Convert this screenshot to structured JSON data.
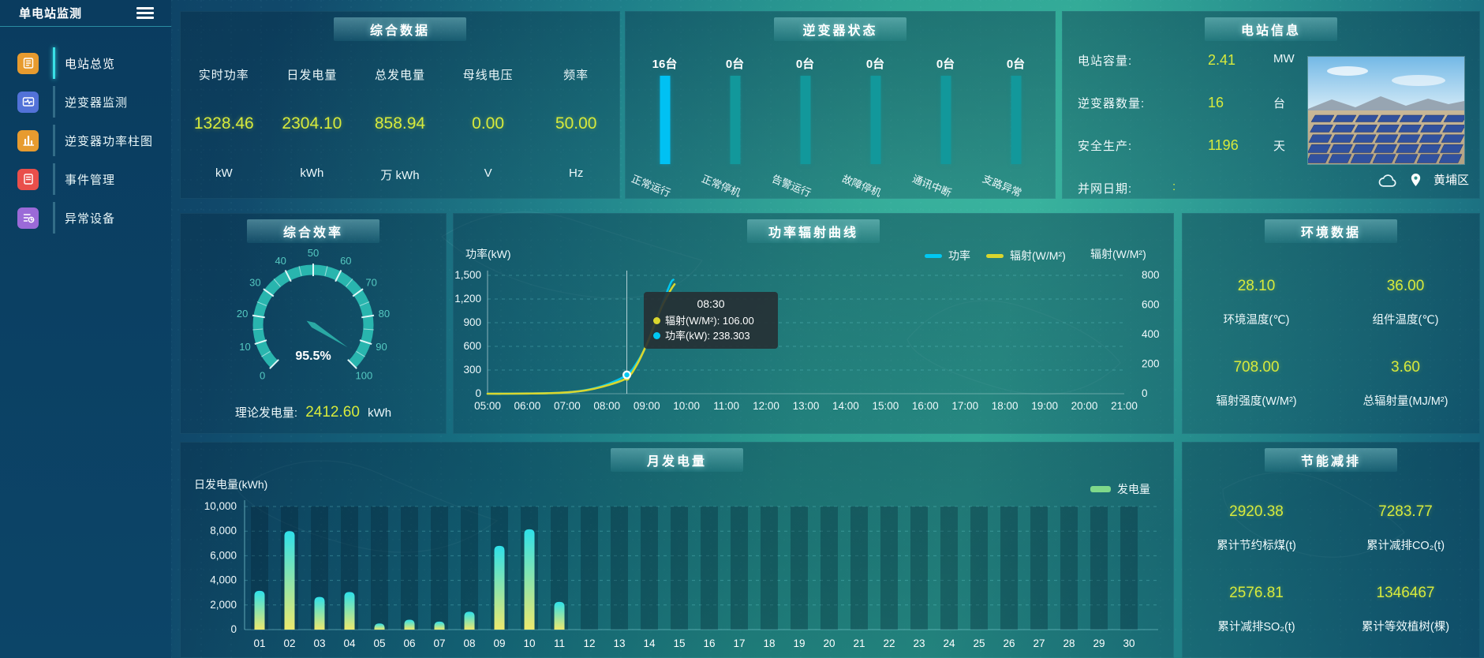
{
  "app": {
    "title": "单电站监测"
  },
  "sidebar": {
    "items": [
      {
        "label": "电站总览",
        "icon": "station-overview-icon",
        "color": "#e79b2f",
        "active": true
      },
      {
        "label": "逆变器监测",
        "icon": "inverter-monitor-icon",
        "color": "#5272d8",
        "active": false
      },
      {
        "label": "逆变器功率柱图",
        "icon": "inverter-power-bar-icon",
        "color": "#e79b2f",
        "active": false
      },
      {
        "label": "事件管理",
        "icon": "event-manage-icon",
        "color": "#e94f4b",
        "active": false
      },
      {
        "label": "异常设备",
        "icon": "abnormal-device-icon",
        "color": "#9b6ad8",
        "active": false
      }
    ]
  },
  "summary": {
    "title": "综合数据",
    "metrics": [
      {
        "label": "实时功率",
        "value": "1328.46",
        "unit": "kW"
      },
      {
        "label": "日发电量",
        "value": "2304.10",
        "unit": "kWh"
      },
      {
        "label": "总发电量",
        "value": "858.94",
        "unit": "万 kWh"
      },
      {
        "label": "母线电压",
        "value": "0.00",
        "unit": "V"
      },
      {
        "label": "频率",
        "value": "50.00",
        "unit": "Hz"
      }
    ]
  },
  "inverter_status": {
    "title": "逆变器状态",
    "bars": [
      {
        "count_label": "16台",
        "status": "正常运行",
        "color": "#00c1f3"
      },
      {
        "count_label": "0台",
        "status": "正常停机",
        "color": "#12989b"
      },
      {
        "count_label": "0台",
        "status": "告警运行",
        "color": "#12989b"
      },
      {
        "count_label": "0台",
        "status": "故障停机",
        "color": "#12989b"
      },
      {
        "count_label": "0台",
        "status": "通讯中断",
        "color": "#12989b"
      },
      {
        "count_label": "0台",
        "status": "支路异常",
        "color": "#12989b"
      }
    ]
  },
  "station_info": {
    "title": "电站信息",
    "rows": [
      {
        "label": "电站容量:",
        "value": "2.41",
        "unit": "MW"
      },
      {
        "label": "逆变器数量:",
        "value": "16",
        "unit": "台"
      },
      {
        "label": "安全生产:",
        "value": "1196",
        "unit": "天"
      },
      {
        "label": "并网日期: ",
        "value": ":",
        "unit": ""
      }
    ],
    "location": "黄埔区"
  },
  "efficiency": {
    "title": "综合效率",
    "value_label": "95.5%",
    "theoretical_label": "理论发电量:",
    "theoretical_value": "2412.60",
    "theoretical_unit": "kWh"
  },
  "power_chart": {
    "title": "功率辐射曲线",
    "y_left_title": "功率(kW)",
    "y_right_title": "辐射(W/M²)",
    "legend": [
      {
        "name": "功率",
        "color": "#00c8f2"
      },
      {
        "name": "辐射(W/M²)",
        "color": "#d9d62e"
      }
    ],
    "tooltip": {
      "time": "08:30",
      "rows": [
        {
          "label": "辐射(W/M²)",
          "value": "106.00",
          "color": "#d9d62e"
        },
        {
          "label": "功率(kW)",
          "value": "238.303",
          "color": "#00c8f2"
        }
      ]
    }
  },
  "environment": {
    "title": "环境数据",
    "cells": [
      {
        "value": "28.10",
        "label": "环境温度(℃)"
      },
      {
        "value": "36.00",
        "label": "组件温度(℃)"
      },
      {
        "value": "708.00",
        "label": "辐射强度(W/M²)"
      },
      {
        "value": "3.60",
        "label": "总辐射量(MJ/M²)"
      }
    ]
  },
  "monthly": {
    "title": "月发电量",
    "axis_title": "日发电量(kWh)",
    "legend_label": "发电量",
    "legend_color": "#7fd98a"
  },
  "energy_saving": {
    "title": "节能减排",
    "cells": [
      {
        "value": "2920.38",
        "label": "累计节约标煤(t)"
      },
      {
        "value": "7283.77",
        "label": "累计减排CO₂(t)"
      },
      {
        "value": "2576.81",
        "label": "累计减排SO₂(t)"
      },
      {
        "value": "1346467",
        "label": "累计等效植树(棵)"
      }
    ]
  },
  "chart_data": [
    {
      "type": "bar",
      "id": "inverter-status",
      "categories": [
        "正常运行",
        "正常停机",
        "告警运行",
        "故障停机",
        "通讯中断",
        "支路异常"
      ],
      "values": [
        16,
        0,
        0,
        0,
        0,
        0
      ],
      "unit": "台"
    },
    {
      "type": "gauge",
      "id": "comprehensive-efficiency",
      "value": 95.5,
      "min": 0,
      "max": 100,
      "tick_labels": [
        "0",
        "10",
        "20",
        "30",
        "40",
        "50",
        "60",
        "70",
        "80",
        "90",
        "100"
      ]
    },
    {
      "type": "line",
      "id": "power-radiation",
      "title": "功率辐射曲线",
      "xlabels": [
        "05:00",
        "06:00",
        "07:00",
        "08:00",
        "09:00",
        "10:00",
        "11:00",
        "12:00",
        "13:00",
        "14:00",
        "15:00",
        "16:00",
        "17:00",
        "18:00",
        "19:00",
        "20:00",
        "21:00"
      ],
      "x_hours_range": [
        5,
        21
      ],
      "y_left": {
        "title": "功率(kW)",
        "min": 0,
        "max": 1500,
        "ticks": [
          "0",
          "300",
          "600",
          "900",
          "1,200",
          "1,500"
        ]
      },
      "y_right": {
        "title": "辐射(W/M²)",
        "min": 0,
        "max": 800,
        "ticks": [
          "0",
          "200",
          "400",
          "600",
          "800"
        ]
      },
      "series": [
        {
          "name": "功率",
          "unit": "kW",
          "axis": "left",
          "color": "#00c8f2",
          "points": [
            [
              5,
              0
            ],
            [
              5.5,
              1
            ],
            [
              6,
              3
            ],
            [
              6.5,
              7
            ],
            [
              7,
              16
            ],
            [
              7.5,
              48
            ],
            [
              8,
              118
            ],
            [
              8.5,
              238.3
            ],
            [
              8.75,
              390
            ],
            [
              9,
              620
            ],
            [
              9.2,
              880
            ],
            [
              9.4,
              1150
            ],
            [
              9.6,
              1400
            ],
            [
              9.67,
              1445
            ]
          ]
        },
        {
          "name": "辐射(W/M²)",
          "unit": "W/M²",
          "axis": "right",
          "color": "#d9d62e",
          "points": [
            [
              5,
              0
            ],
            [
              5.5,
              0
            ],
            [
              6,
              1
            ],
            [
              6.5,
              3
            ],
            [
              7,
              9
            ],
            [
              7.5,
              24
            ],
            [
              8,
              56
            ],
            [
              8.5,
              106
            ],
            [
              8.75,
              195
            ],
            [
              9,
              335
            ],
            [
              9.2,
              470
            ],
            [
              9.4,
              600
            ],
            [
              9.6,
              700
            ],
            [
              9.7,
              740
            ]
          ]
        }
      ],
      "highlight": {
        "x": 8.5,
        "time": "08:30",
        "power": 238.303,
        "radiation": 106.0
      }
    },
    {
      "type": "bar",
      "id": "monthly-generation",
      "title": "月发电量",
      "ylabel": "日发电量(kWh)",
      "categories": [
        "01",
        "02",
        "03",
        "04",
        "05",
        "06",
        "07",
        "08",
        "09",
        "10",
        "11",
        "12",
        "13",
        "14",
        "15",
        "16",
        "17",
        "18",
        "19",
        "20",
        "21",
        "22",
        "23",
        "24",
        "25",
        "26",
        "27",
        "28",
        "29",
        "30"
      ],
      "values": [
        3150,
        8000,
        2650,
        3050,
        500,
        800,
        650,
        1450,
        6800,
        8150,
        2250,
        0,
        0,
        0,
        0,
        0,
        0,
        0,
        0,
        0,
        0,
        0,
        0,
        0,
        0,
        0,
        0,
        0,
        0,
        0
      ],
      "ylim": [
        0,
        10000
      ],
      "yticks": [
        "0",
        "2,000",
        "4,000",
        "6,000",
        "8,000",
        "10,000"
      ],
      "bar_gradient": [
        "#2ee0e9",
        "#ede96e"
      ]
    }
  ]
}
